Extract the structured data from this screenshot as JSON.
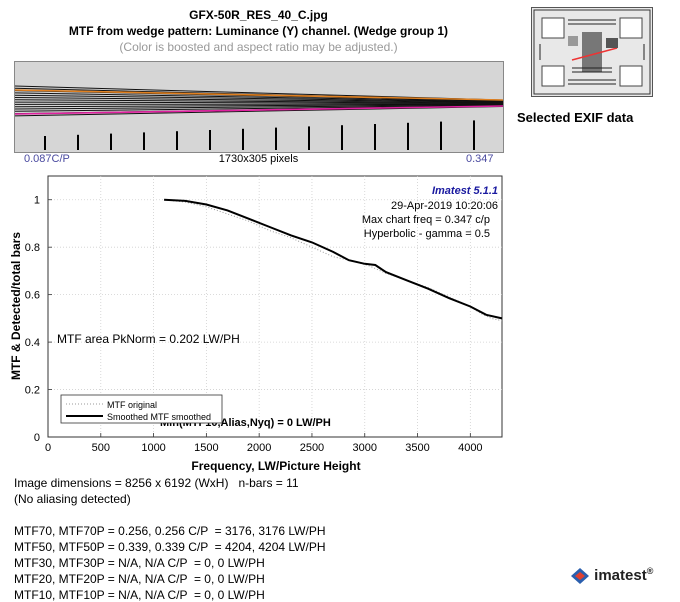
{
  "header": {
    "filename": "GFX-50R_RES_40_C.jpg",
    "title": "MTF from wedge pattern:  Luminance (Y) channel.  (Wedge group 1)",
    "note": "(Color is boosted and aspect ratio may be adjusted.)"
  },
  "strip": {
    "left_label": "0.087C/P",
    "center_label": "1730x305 pixels",
    "right_label": "0.347"
  },
  "exif": {
    "label": "Selected EXIF data"
  },
  "chart_data": {
    "type": "line",
    "xlabel": "Frequency, LW/Picture Height",
    "ylabel": "MTF & Detected/total bars",
    "xlim": [
      0,
      4300
    ],
    "ylim": [
      0,
      1.1
    ],
    "x_ticks": [
      0,
      500,
      1000,
      1500,
      2000,
      2500,
      3000,
      3500,
      4000
    ],
    "y_ticks": [
      0,
      0.2,
      0.4,
      0.6,
      0.8,
      1
    ],
    "grid": true,
    "legend_position": "bottom-left",
    "series": [
      {
        "name": "MTF original",
        "style": "dotted",
        "color": "#999999",
        "x": [
          1100,
          1300,
          1500,
          1700,
          1900,
          2100,
          2300,
          2500,
          2700,
          2900,
          3050,
          3200,
          3400,
          3600,
          3800,
          4000,
          4100,
          4200,
          4300
        ],
        "y": [
          1.0,
          0.99,
          0.97,
          0.94,
          0.91,
          0.87,
          0.84,
          0.8,
          0.76,
          0.74,
          0.72,
          0.69,
          0.66,
          0.63,
          0.59,
          0.55,
          0.52,
          0.5,
          0.49
        ]
      },
      {
        "name": "Smoothed MTF smoothed",
        "style": "solid",
        "color": "#000000",
        "x": [
          1100,
          1300,
          1500,
          1700,
          1900,
          2100,
          2300,
          2500,
          2700,
          2850,
          3000,
          3100,
          3200,
          3400,
          3600,
          3800,
          4000,
          4150,
          4300
        ],
        "y": [
          1.0,
          0.995,
          0.98,
          0.955,
          0.92,
          0.885,
          0.85,
          0.82,
          0.78,
          0.745,
          0.73,
          0.725,
          0.695,
          0.66,
          0.625,
          0.585,
          0.55,
          0.515,
          0.5
        ]
      }
    ],
    "annotations": {
      "imatest": "Imatest 5.1.1",
      "date": "29-Apr-2019 10:20:06",
      "max_freq": "Max chart freq = 0.347 c/p",
      "hyperbolic": "Hyperbolic -  gamma = 0.5",
      "area": "MTF area PkNorm = 0.202 LW/PH",
      "min": "Min(MTF10,Alias,Nyq) = 0 LW/PH"
    }
  },
  "info": {
    "dimensions": "Image dimensions = 8256 x 6192 (WxH)   n-bars = 11",
    "aliasing": "(No aliasing detected)",
    "mtf70": "MTF70, MTF70P = 0.256, 0.256 C/P  = 3176, 3176 LW/PH",
    "mtf50": "MTF50, MTF50P = 0.339, 0.339 C/P  = 4204, 4204 LW/PH",
    "mtf30": "MTF30, MTF30P = N/A, N/A C/P  = 0, 0 LW/PH",
    "mtf20": "MTF20, MTF20P = N/A, N/A C/P  = 0, 0 LW/PH",
    "mtf10": "MTF10, MTF10P = N/A, N/A C/P  = 0, 0 LW/PH"
  },
  "logo": {
    "text": "imatest",
    "mark": "®"
  }
}
